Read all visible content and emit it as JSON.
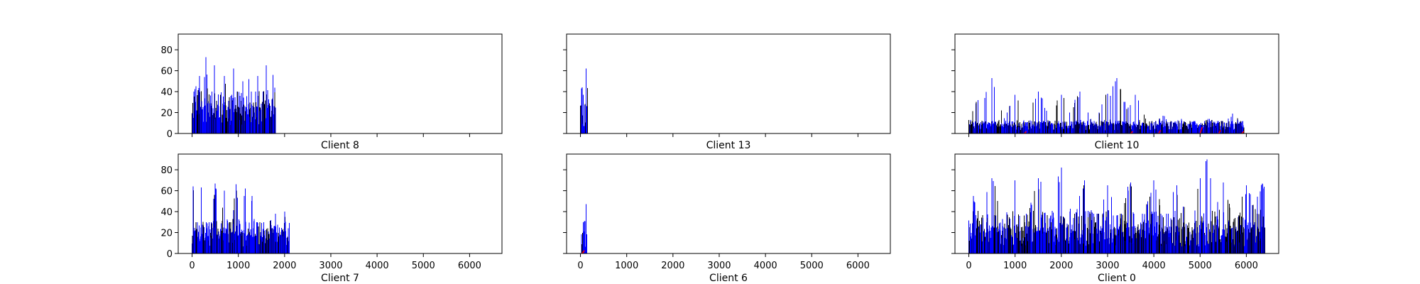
{
  "figure": {
    "layout": "2x3 grid of bar histograms with shared y-axis"
  },
  "chart_data": [
    {
      "type": "bar",
      "title": "Client 8",
      "row": 0,
      "col": 0,
      "xlim": [
        -300,
        6700
      ],
      "ylim": [
        0,
        95
      ],
      "xticks": [
        0,
        1000,
        2000,
        3000,
        4000,
        5000,
        6000
      ],
      "xtick_labels_visible": false,
      "yticks": [
        0,
        20,
        40,
        60,
        80
      ],
      "ytick_labels_visible": true,
      "grid": false,
      "extent": [
        0,
        1800
      ],
      "peaks": [
        [
          80,
          45
        ],
        [
          160,
          55
        ],
        [
          300,
          73
        ],
        [
          480,
          65
        ],
        [
          700,
          55
        ],
        [
          900,
          62
        ],
        [
          1100,
          50
        ],
        [
          1230,
          52
        ],
        [
          1420,
          55
        ],
        [
          1600,
          65
        ],
        [
          1750,
          56
        ]
      ],
      "base": [
        40,
        25
      ]
    },
    {
      "type": "bar",
      "title": "Client 13",
      "row": 0,
      "col": 1,
      "xlim": [
        -300,
        6700
      ],
      "ylim": [
        0,
        95
      ],
      "xticks": [
        0,
        1000,
        2000,
        3000,
        4000,
        5000,
        6000
      ],
      "xtick_labels_visible": false,
      "yticks": [
        0,
        20,
        40,
        60,
        80
      ],
      "ytick_labels_visible": false,
      "grid": false,
      "extent": [
        0,
        150
      ],
      "peaks": [
        [
          20,
          43
        ],
        [
          40,
          44
        ],
        [
          60,
          37
        ],
        [
          90,
          27
        ],
        [
          120,
          62
        ],
        [
          140,
          26
        ]
      ],
      "base": [
        28,
        14
      ]
    },
    {
      "type": "bar",
      "title": "Client 10",
      "row": 0,
      "col": 2,
      "xlim": [
        -300,
        6700
      ],
      "ylim": [
        0,
        95
      ],
      "xticks": [
        0,
        1000,
        2000,
        3000,
        4000,
        5000,
        6000
      ],
      "xtick_labels_visible": false,
      "yticks": [
        0,
        20,
        40,
        60,
        80
      ],
      "ytick_labels_visible": false,
      "grid": false,
      "extent": [
        0,
        5950
      ],
      "peaks": [
        [
          200,
          32
        ],
        [
          500,
          53
        ],
        [
          1000,
          37
        ],
        [
          1500,
          40
        ],
        [
          2000,
          37
        ],
        [
          2400,
          40
        ],
        [
          3000,
          38
        ],
        [
          3200,
          53
        ],
        [
          3600,
          37
        ],
        [
          4200,
          17
        ],
        [
          4600,
          14
        ],
        [
          5200,
          14
        ],
        [
          5700,
          19
        ]
      ],
      "base": [
        12,
        10
      ],
      "red_markers": [
        [
          1200,
          2
        ],
        [
          3500,
          2
        ],
        [
          4100,
          3
        ],
        [
          5000,
          6
        ],
        [
          5400,
          3
        ],
        [
          5900,
          2
        ]
      ]
    },
    {
      "type": "bar",
      "title": "Client 7",
      "row": 1,
      "col": 0,
      "xlim": [
        -300,
        6700
      ],
      "ylim": [
        0,
        95
      ],
      "xticks": [
        0,
        1000,
        2000,
        3000,
        4000,
        5000,
        6000
      ],
      "xtick_labels_visible": true,
      "yticks": [
        0,
        20,
        40,
        60,
        80
      ],
      "ytick_labels_visible": true,
      "grid": false,
      "extent": [
        0,
        2100
      ],
      "peaks": [
        [
          20,
          64
        ],
        [
          200,
          63
        ],
        [
          500,
          67
        ],
        [
          700,
          60
        ],
        [
          950,
          66
        ],
        [
          1150,
          62
        ],
        [
          1300,
          55
        ],
        [
          1500,
          15
        ],
        [
          1700,
          32
        ],
        [
          1800,
          38
        ],
        [
          2000,
          40
        ]
      ],
      "base": [
        30,
        22
      ]
    },
    {
      "type": "bar",
      "title": "Client 6",
      "row": 1,
      "col": 1,
      "xlim": [
        -300,
        6700
      ],
      "ylim": [
        0,
        95
      ],
      "xticks": [
        0,
        1000,
        2000,
        3000,
        4000,
        5000,
        6000
      ],
      "xtick_labels_visible": true,
      "yticks": [
        0,
        20,
        40,
        60,
        80
      ],
      "ytick_labels_visible": false,
      "grid": false,
      "extent": [
        20,
        140
      ],
      "peaks": [
        [
          60,
          30
        ],
        [
          80,
          31
        ],
        [
          100,
          31
        ],
        [
          120,
          47
        ]
      ],
      "base": [
        20,
        8
      ],
      "red_markers": [
        [
          30,
          2
        ],
        [
          40,
          3
        ]
      ]
    },
    {
      "type": "bar",
      "title": "Client 0",
      "row": 1,
      "col": 2,
      "xlim": [
        -300,
        6700
      ],
      "ylim": [
        0,
        95
      ],
      "xticks": [
        0,
        1000,
        2000,
        3000,
        4000,
        5000,
        6000
      ],
      "xtick_labels_visible": true,
      "yticks": [
        0,
        20,
        40,
        60,
        80
      ],
      "ytick_labels_visible": false,
      "grid": false,
      "extent": [
        0,
        6400
      ],
      "peaks": [
        [
          100,
          55
        ],
        [
          500,
          72
        ],
        [
          1000,
          70
        ],
        [
          1500,
          72
        ],
        [
          2000,
          82
        ],
        [
          2500,
          70
        ],
        [
          3000,
          65
        ],
        [
          3500,
          68
        ],
        [
          4000,
          70
        ],
        [
          4500,
          65
        ],
        [
          5000,
          72
        ],
        [
          5150,
          90
        ],
        [
          5500,
          68
        ],
        [
          6000,
          65
        ],
        [
          6350,
          67
        ]
      ],
      "base": [
        38,
        22
      ]
    }
  ]
}
